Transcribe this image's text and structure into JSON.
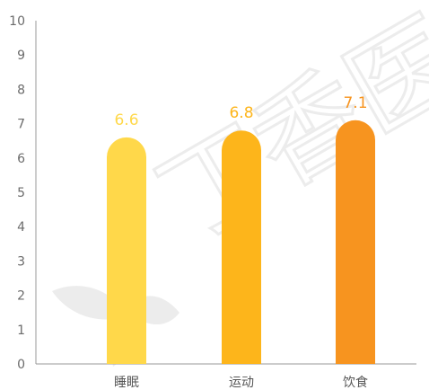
{
  "chart_data": {
    "type": "bar",
    "categories": [
      "睡眠",
      "运动",
      "饮食"
    ],
    "values": [
      6.6,
      6.8,
      7.1
    ],
    "value_labels": [
      "6.6",
      "6.8",
      "7.1"
    ],
    "bar_colors": [
      "#FFD84A",
      "#FDB51B",
      "#F7941F"
    ],
    "ylim": [
      0,
      10
    ],
    "yticks": [
      "0",
      "1",
      "2",
      "3",
      "4",
      "5",
      "6",
      "7",
      "8",
      "9",
      "10"
    ],
    "grid": false,
    "axis_color": "#9a9a9a"
  },
  "watermark": {
    "text": "丁香医"
  }
}
